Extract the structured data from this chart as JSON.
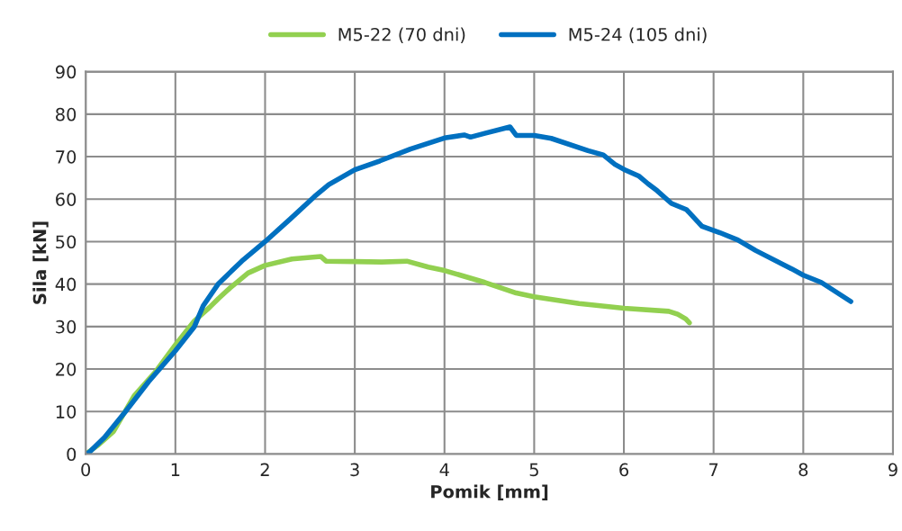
{
  "chart_data": {
    "type": "line",
    "xlabel": "Pomik [mm]",
    "ylabel": "Sila [kN]",
    "xlim": [
      0,
      9
    ],
    "ylim": [
      0,
      90
    ],
    "xticks": [
      0,
      1,
      2,
      3,
      4,
      5,
      6,
      7,
      8,
      9
    ],
    "yticks": [
      0,
      10,
      20,
      30,
      40,
      50,
      60,
      70,
      80,
      90
    ],
    "grid": true,
    "legend": "top",
    "marker": "none",
    "line_style": "solid",
    "series": [
      {
        "name": "M5-22 (70 dni)",
        "color": "#92d050",
        "x": [
          0,
          0.14,
          0.31,
          0.54,
          0.78,
          1.0,
          1.21,
          1.38,
          1.48,
          1.61,
          1.81,
          2.0,
          2.3,
          2.62,
          2.68,
          3.0,
          3.3,
          3.58,
          3.82,
          4.0,
          4.45,
          4.8,
          5.0,
          5.5,
          6.0,
          6.5,
          6.6,
          6.69,
          6.73
        ],
        "values": [
          0,
          2.1,
          5.3,
          13.7,
          19.4,
          25.7,
          31.3,
          34.5,
          36.6,
          39.1,
          42.6,
          44.4,
          45.9,
          46.5,
          45.4,
          45.3,
          45.2,
          45.4,
          44,
          43.2,
          40.4,
          37.9,
          37,
          35.4,
          34.3,
          33.6,
          32.9,
          31.8,
          30.9
        ]
      },
      {
        "name": "M5-24 (105 dni)",
        "color": "#0070c0",
        "x": [
          0,
          0.04,
          0.21,
          0.44,
          0.7,
          1.0,
          1.21,
          1.31,
          1.48,
          1.74,
          2.0,
          2.28,
          2.55,
          2.71,
          3.0,
          3.28,
          3.62,
          4.0,
          4.22,
          4.29,
          4.45,
          4.73,
          4.8,
          5.0,
          5.19,
          5.6,
          5.77,
          5.9,
          6.0,
          6.17,
          6.27,
          6.37,
          6.53,
          6.7,
          6.87,
          7.07,
          7.27,
          7.47,
          7.87,
          8.0,
          8.2,
          8.53
        ],
        "values": [
          0,
          0.4,
          3.9,
          9.9,
          17,
          24.3,
          29.9,
          34.9,
          40.1,
          45.4,
          50,
          55.3,
          60.6,
          63.4,
          66.9,
          69,
          71.8,
          74.4,
          75.1,
          74.6,
          75.5,
          77,
          75,
          75,
          74.3,
          71.4,
          70.4,
          68.2,
          67,
          65.4,
          63.6,
          62,
          59,
          57.5,
          53.6,
          52.1,
          50.4,
          47.9,
          43.6,
          42.1,
          40.4,
          35.9
        ]
      }
    ]
  }
}
